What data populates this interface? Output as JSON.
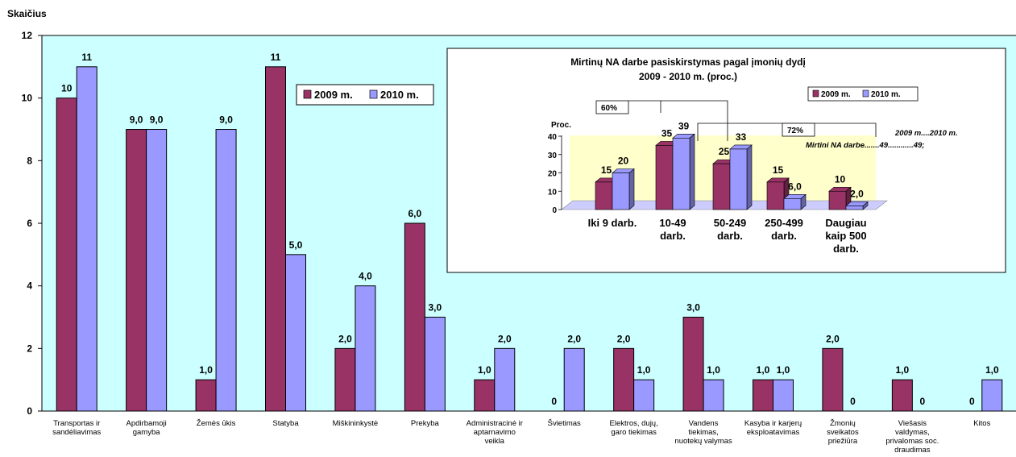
{
  "chart_data": [
    {
      "type": "bar",
      "ylabel": "Skaičius",
      "ylim": [
        0,
        12
      ],
      "yticks": [
        0,
        2,
        4,
        6,
        8,
        10,
        12
      ],
      "categories": [
        [
          "Transportas ir",
          "sandėliavimas"
        ],
        [
          "Apdirbamoji",
          "gamyba"
        ],
        [
          "Žemės ūkis"
        ],
        [
          "Statyba"
        ],
        [
          "Miškininkystė"
        ],
        [
          "Prekyba"
        ],
        [
          "Administracinė ir",
          "aptarnavimo",
          "veikla"
        ],
        [
          "Švietimas"
        ],
        [
          "Elektros, dujų,",
          "garo tiekimas"
        ],
        [
          "Vandens",
          "tiekimas,",
          "nuotekų valymas"
        ],
        [
          "Kasyba ir karjerų",
          "eksploatavimas"
        ],
        [
          "Žmonių",
          "sveikatos",
          "priežiūra"
        ],
        [
          "Viešasis",
          "valdymas,",
          "privalomas soc.",
          "draudimas"
        ],
        [
          "Kitos"
        ]
      ],
      "series": [
        {
          "name": "2009 m.",
          "color": "#993366",
          "values": [
            10,
            9,
            1,
            11,
            2,
            6,
            1,
            0,
            2,
            3,
            1,
            2,
            1,
            0
          ],
          "labels": [
            "10",
            "9,0",
            "1,0",
            "11",
            "2,0",
            "6,0",
            "1,0",
            "0",
            "2,0",
            "3,0",
            "1,0",
            "2,0",
            "1,0",
            "0"
          ]
        },
        {
          "name": "2010 m.",
          "color": "#9999ff",
          "values": [
            11,
            9,
            9,
            5,
            4,
            3,
            2,
            2,
            1,
            1,
            1,
            0,
            0,
            1
          ],
          "labels": [
            "11",
            "9,0",
            "9,0",
            "5,0",
            "4,0",
            "3,0",
            "2,0",
            "2,0",
            "1,0",
            "1,0",
            "1,0",
            "0",
            "0",
            "1,0"
          ]
        }
      ],
      "plot_background": "#ccffff",
      "legend": "top-center"
    },
    {
      "type": "bar",
      "title": "Mirtinų NA darbe pasiskirstymas pagal įmonių dydį",
      "subtitle": "2009 - 2010 m. (proc.)",
      "ylabel": "Proc.",
      "ylim": [
        0,
        40
      ],
      "yticks": [
        0,
        10,
        20,
        30,
        40
      ],
      "categories": [
        [
          "Iki 9 darb."
        ],
        [
          "10-49",
          "darb."
        ],
        [
          "50-249",
          "darb."
        ],
        [
          "250-499",
          "darb."
        ],
        [
          "Daugiau",
          "kaip 500",
          "darb."
        ]
      ],
      "series": [
        {
          "name": "2009 m.",
          "color": "#993366",
          "values": [
            15,
            35,
            25,
            15,
            10
          ],
          "labels": [
            "15",
            "35",
            "25",
            "15",
            "10"
          ]
        },
        {
          "name": "2010 m.",
          "color": "#9999ff",
          "values": [
            20,
            39,
            33,
            6,
            2
          ],
          "labels": [
            "20",
            "39",
            "33",
            "6,0",
            "2,0"
          ]
        }
      ],
      "annotations": {
        "bracket_left": "60%",
        "bracket_right": "72%",
        "note_line1": "2009 m....2010 m.",
        "note_line2": "Mirtini NA darbe.......49............49;"
      },
      "floor_color": "#ffffcc",
      "legend": "top-right"
    }
  ]
}
